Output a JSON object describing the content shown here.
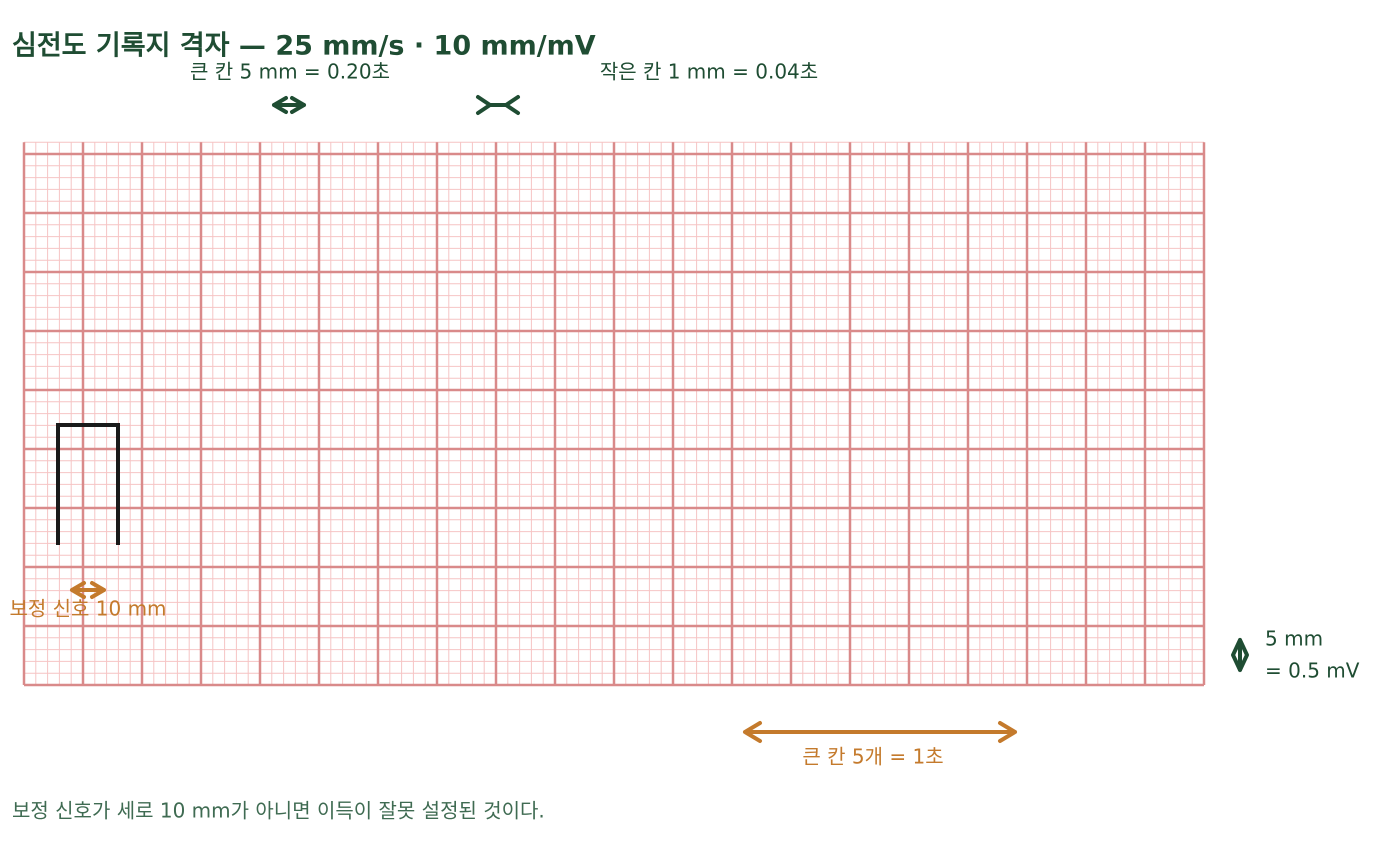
{
  "header": {
    "title": "심전도 기록지 격자 — 25 mm/s · 10 mm/mV"
  },
  "annotations": {
    "big_box": "큰 칸 5 mm = 0.20초",
    "small_box": "작은 칸 1 mm = 0.04초",
    "calibration": "보정 신호 10 mm",
    "voltage": [
      "5 mm",
      "= 0.5 mV"
    ],
    "time": "큰 칸 5개 = 1초"
  },
  "footer": "보정 신호가 세로 10 mm가 아니면 이득이 잘못 설정된 것이다."
}
